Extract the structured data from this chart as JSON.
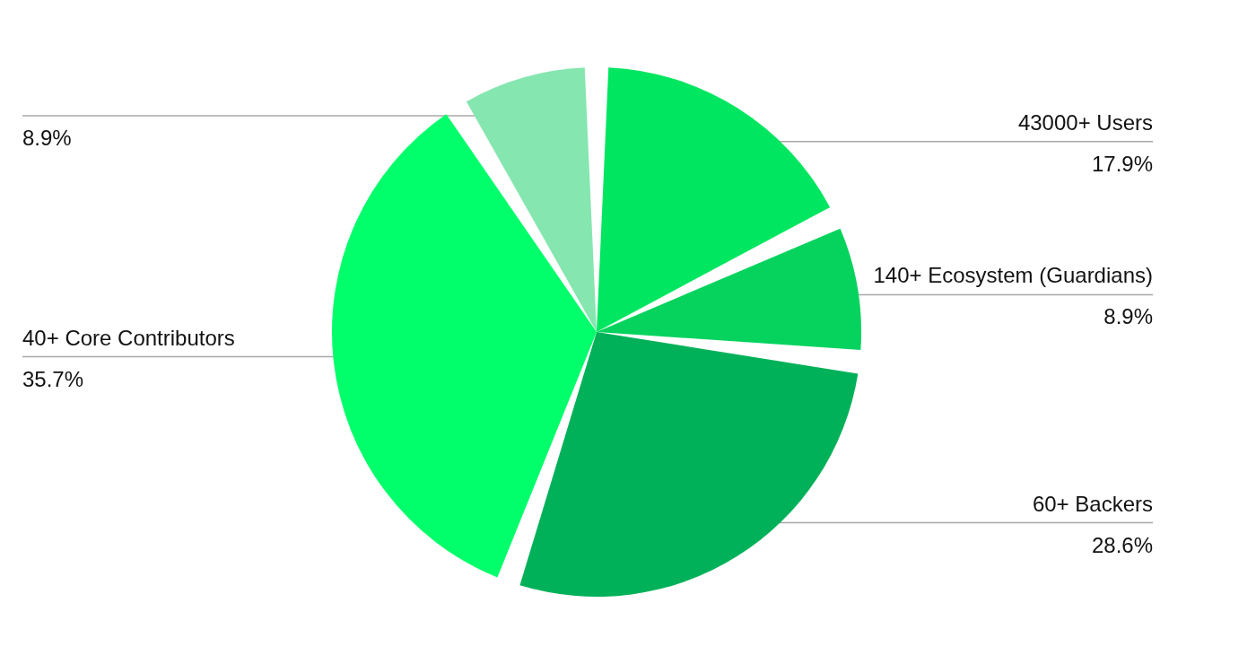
{
  "chart_data": {
    "type": "pie",
    "categories": [
      "43000+ Users",
      "140+ Ecosystem (Guardians)",
      "60+ Backers",
      "40+ Core Contributors",
      null
    ],
    "values": [
      17.9,
      8.9,
      28.6,
      35.7,
      8.9
    ],
    "colors": [
      "#00e660",
      "#05d35e",
      "#00b159",
      "#00ff6a",
      "#86e6b0"
    ],
    "value_labels": [
      "17.9%",
      "8.9%",
      "28.6%",
      "35.7%",
      "8.9%"
    ]
  }
}
